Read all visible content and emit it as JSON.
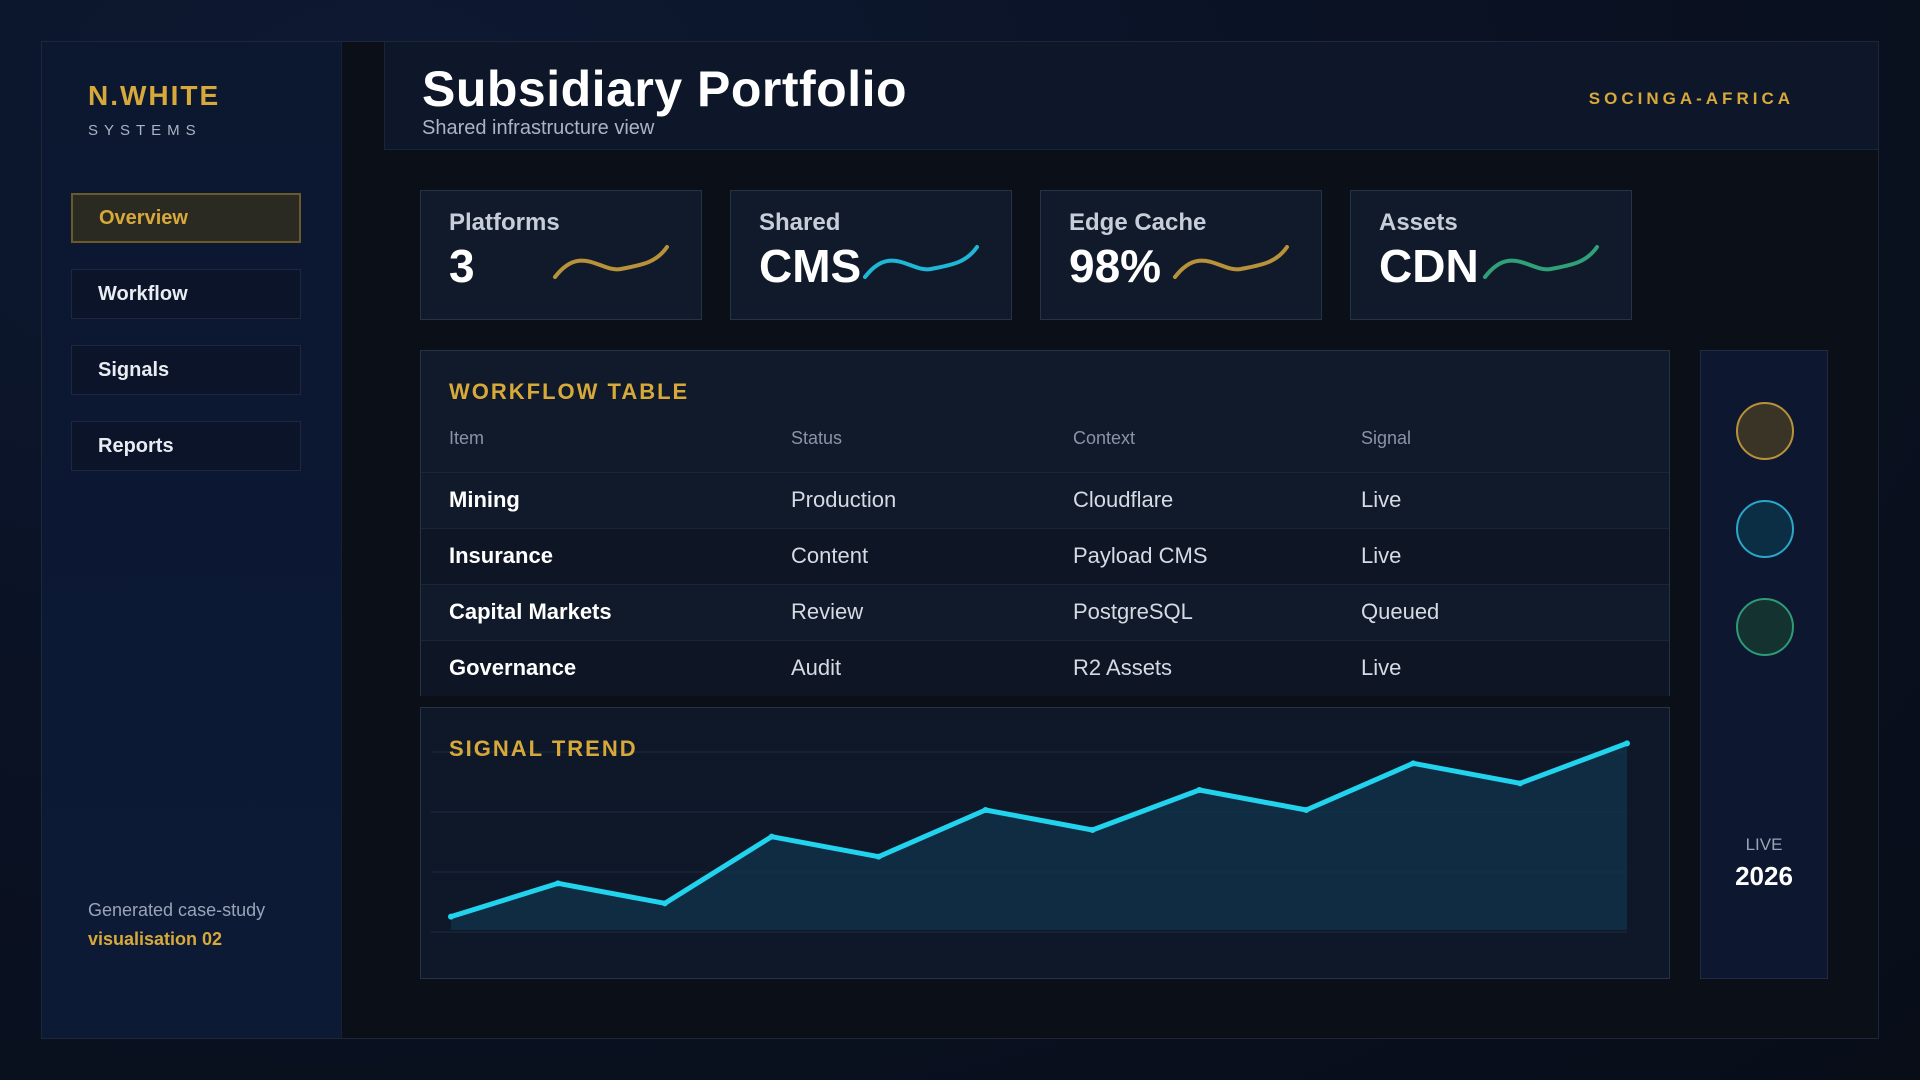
{
  "brand": {
    "name": "N.WHITE",
    "sub": "SYSTEMS"
  },
  "nav": [
    {
      "label": "Overview",
      "active": true
    },
    {
      "label": "Workflow",
      "active": false
    },
    {
      "label": "Signals",
      "active": false
    },
    {
      "label": "Reports",
      "active": false
    }
  ],
  "footer": {
    "line1": "Generated case-study",
    "line2": "visualisation 02"
  },
  "header": {
    "title": "Subsidiary Portfolio",
    "subtitle": "Shared infrastructure view",
    "org": "SOCINGA-AFRICA"
  },
  "kpis": [
    {
      "label": "Platforms",
      "value": "3",
      "spark_color": "#b8923a"
    },
    {
      "label": "Shared",
      "value": "CMS",
      "spark_color": "#1fb7d6"
    },
    {
      "label": "Edge Cache",
      "value": "98%",
      "spark_color": "#b8923a"
    },
    {
      "label": "Assets",
      "value": "CDN",
      "spark_color": "#2fa078"
    }
  ],
  "workflow": {
    "title": "WORKFLOW TABLE",
    "columns": [
      "Item",
      "Status",
      "Context",
      "Signal"
    ],
    "rows": [
      [
        "Mining",
        "Production",
        "Cloudflare",
        "Live"
      ],
      [
        "Insurance",
        "Content",
        "Payload CMS",
        "Live"
      ],
      [
        "Capital Markets",
        "Review",
        "PostgreSQL",
        "Queued"
      ],
      [
        "Governance",
        "Audit",
        "R2 Assets",
        "Live"
      ]
    ]
  },
  "trend": {
    "title": "SIGNAL TREND",
    "line_color": "#22d3ee"
  },
  "chart_data": {
    "type": "area",
    "title": "SIGNAL TREND",
    "x": [
      1,
      2,
      3,
      4,
      5,
      6,
      7,
      8,
      9,
      10,
      11,
      12
    ],
    "values": [
      2,
      7,
      4,
      14,
      11,
      18,
      15,
      21,
      18,
      25,
      22,
      28
    ],
    "ylim": [
      0,
      30
    ],
    "grid": true
  },
  "rail": {
    "dots": [
      {
        "fill": "#3a3426",
        "stroke": "#b8923a"
      },
      {
        "fill": "#0c2e45",
        "stroke": "#2aa7c9"
      },
      {
        "fill": "#133230",
        "stroke": "#2e9a78"
      }
    ],
    "status": "LIVE",
    "year": "2026"
  }
}
